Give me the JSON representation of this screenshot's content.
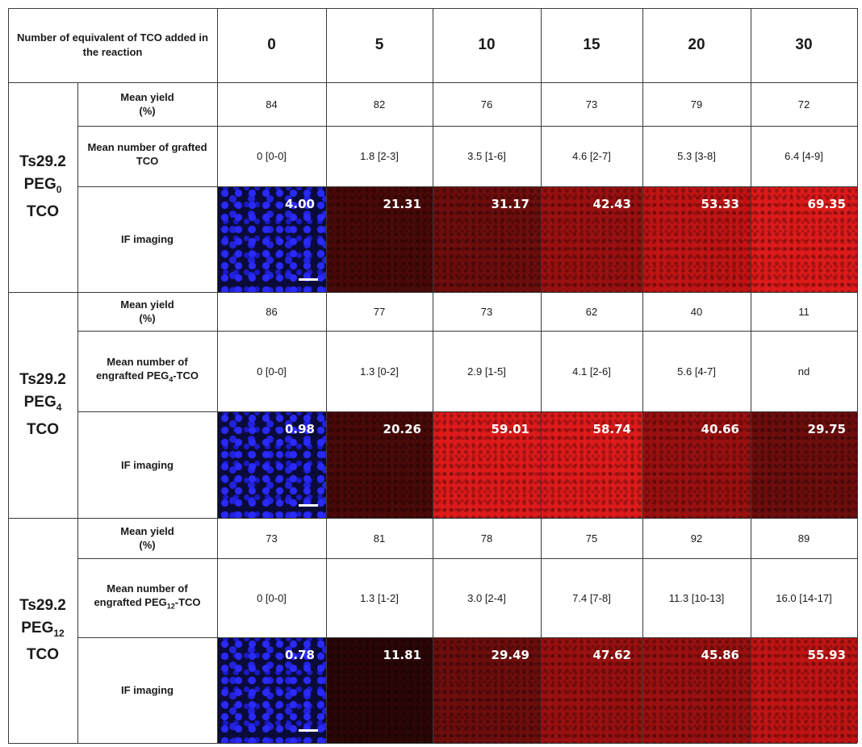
{
  "header": {
    "label": "Number of equivalent of TCO added in the reaction",
    "equivalents": [
      "0",
      "5",
      "10",
      "15",
      "20",
      "30"
    ]
  },
  "groups": [
    {
      "name": "Ts29.2",
      "peg_base": "PEG",
      "peg_sub": "0",
      "suffix": "TCO",
      "yield_label": "Mean yield (%)",
      "yields": [
        "84",
        "82",
        "76",
        "73",
        "79",
        "72"
      ],
      "number_label_main": "Mean number of grafted TCO",
      "number_label_sub": "",
      "number_label_end": "",
      "numbers": [
        "0 [0-0]",
        "1.8 [2-3]",
        "3.5 [1-6]",
        "4.6 [2-7]",
        "5.3 [3-8]",
        "6.4 [4-9]"
      ],
      "imaging_label": "IF imaging",
      "intensities": [
        "4.00",
        "21.31",
        "31.17",
        "42.43",
        "53.33",
        "69.35"
      ]
    },
    {
      "name": "Ts29.2",
      "peg_base": "PEG",
      "peg_sub": "4",
      "suffix": "TCO",
      "yield_label": "Mean yield (%)",
      "yields": [
        "86",
        "77",
        "73",
        "62",
        "40",
        "11"
      ],
      "number_label_main": "Mean number of engrafted PEG",
      "number_label_sub": "4",
      "number_label_end": "-TCO",
      "numbers": [
        "0 [0-0]",
        "1.3 [0-2]",
        "2.9 [1-5]",
        "4.1 [2-6]",
        "5.6 [4-7]",
        "nd"
      ],
      "imaging_label": "IF imaging",
      "intensities": [
        "0.98",
        "20.26",
        "59.01",
        "58.74",
        "40.66",
        "29.75"
      ]
    },
    {
      "name": "Ts29.2",
      "peg_base": "PEG",
      "peg_sub": "12",
      "suffix": "TCO",
      "yield_label": "Mean yield (%)",
      "yields": [
        "73",
        "81",
        "78",
        "75",
        "92",
        "89"
      ],
      "number_label_main": "Mean number of engrafted PEG",
      "number_label_sub": "12",
      "number_label_end": "-TCO",
      "numbers": [
        "0 [0-0]",
        "1.3 [1-2]",
        "3.0 [2-4]",
        "7.4 [7-8]",
        "11.3 [10-13]",
        "16.0 [14-17]"
      ],
      "imaging_label": "IF imaging",
      "intensities": [
        "0.78",
        "11.81",
        "29.49",
        "47.62",
        "45.86",
        "55.93"
      ]
    }
  ],
  "colors": {
    "dapi_blue": "#2a2aff",
    "signal_red": "#de1a1a",
    "grid": "#3a3a3a"
  },
  "image_channels": [
    [
      "blue",
      "red",
      "red",
      "red",
      "red",
      "red"
    ],
    [
      "blue",
      "red",
      "red",
      "red",
      "red",
      "red"
    ],
    [
      "blue",
      "red",
      "red",
      "red",
      "red",
      "red"
    ]
  ]
}
